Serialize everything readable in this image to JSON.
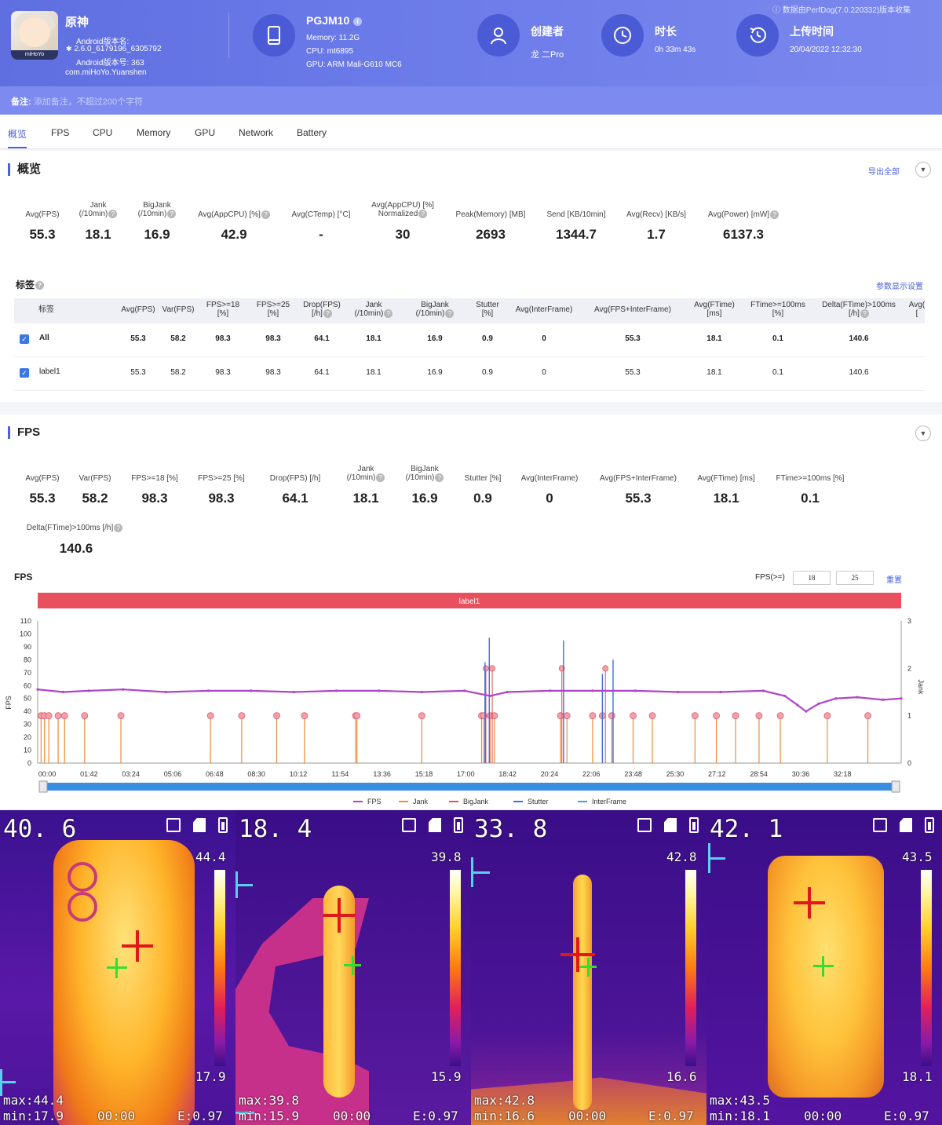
{
  "header": {
    "app_name": "原神",
    "app_icon_brand": "miHoYo",
    "version_name_label": "Android版本名:",
    "version_name": "2.6.0_6179196_6305792",
    "version_code": "Android版本号: 363",
    "package": "com.miHoYo.Yuanshen",
    "device_name": "PGJM10",
    "memory": "Memory: 11.2G",
    "cpu": "CPU: mt6895",
    "gpu": "GPU: ARM Mali-G610 MC6",
    "creator_label": "创建者",
    "creator": "龙 二Pro",
    "duration_label": "时长",
    "duration": "0h 33m 43s",
    "upload_label": "上传时间",
    "upload_time": "20/04/2022 12:32:30",
    "source_note": "数据由PerfDog(7.0.220332)版本收集"
  },
  "note": {
    "label": "备注:",
    "placeholder": "添加备注，不超过200个字符"
  },
  "tabs": [
    "概览",
    "FPS",
    "CPU",
    "Memory",
    "GPU",
    "Network",
    "Battery"
  ],
  "overview": {
    "title": "概览",
    "export_label": "导出全部",
    "metrics": [
      {
        "label": "Avg(FPS)",
        "value": "55.3"
      },
      {
        "label": "Jank\n(/10min)",
        "value": "18.1"
      },
      {
        "label": "BigJank\n(/10min)",
        "value": "16.9"
      },
      {
        "label": "Avg(AppCPU) [%]",
        "value": "42.9"
      },
      {
        "label": "Avg(CTemp) [°C]",
        "value": "-"
      },
      {
        "label": "Avg(AppCPU) [%]\nNormalized",
        "value": "30"
      },
      {
        "label": "Peak(Memory) [MB]",
        "value": "2693"
      },
      {
        "label": "Send [KB/10min]",
        "value": "1344.7"
      },
      {
        "label": "Avg(Recv) [KB/s]",
        "value": "1.7"
      },
      {
        "label": "Avg(Power) [mW]",
        "value": "6137.3"
      }
    ]
  },
  "labels_table": {
    "title": "标签",
    "settings_label": "参数显示设置",
    "headers": [
      "标签",
      "Avg(FPS)",
      "Var(FPS)",
      "FPS>=18\n[%]",
      "FPS>=25\n[%]",
      "Drop(FPS)\n[/h]",
      "Jank\n(/10min)",
      "BigJank\n(/10min)",
      "Stutter\n[%]",
      "Avg(InterFrame)",
      "Avg(FPS+InterFrame)",
      "Avg(FTime)\n[ms]",
      "FTime>=100ms\n[%]",
      "Delta(FTime)>100ms\n[/h]",
      "Avg(\n["
    ],
    "rows": [
      {
        "name": "All",
        "cells": [
          "55.3",
          "58.2",
          "98.3",
          "98.3",
          "64.1",
          "18.1",
          "16.9",
          "0.9",
          "0",
          "55.3",
          "18.1",
          "0.1",
          "140.6"
        ]
      },
      {
        "name": "label1",
        "cells": [
          "55.3",
          "58.2",
          "98.3",
          "98.3",
          "64.1",
          "18.1",
          "16.9",
          "0.9",
          "0",
          "55.3",
          "18.1",
          "0.1",
          "140.6"
        ]
      }
    ]
  },
  "fps_section": {
    "title": "FPS",
    "metrics": [
      {
        "label": "Avg(FPS)",
        "value": "55.3"
      },
      {
        "label": "Var(FPS)",
        "value": "58.2"
      },
      {
        "label": "FPS>=18 [%]",
        "value": "98.3"
      },
      {
        "label": "FPS>=25 [%]",
        "value": "98.3"
      },
      {
        "label": "Drop(FPS) [/h]",
        "value": "64.1"
      },
      {
        "label": "Jank\n(/10min)",
        "value": "18.1"
      },
      {
        "label": "BigJank\n(/10min)",
        "value": "16.9"
      },
      {
        "label": "Stutter [%]",
        "value": "0.9"
      },
      {
        "label": "Avg(InterFrame)",
        "value": "0"
      },
      {
        "label": "Avg(FPS+InterFrame)",
        "value": "55.3"
      },
      {
        "label": "Avg(FTime) [ms]",
        "value": "18.1"
      },
      {
        "label": "FTime>=100ms [%]",
        "value": "0.1"
      }
    ],
    "extra_metric": {
      "label": "Delta(FTime)>100ms [/h]",
      "value": "140.6"
    },
    "chart_title": "FPS",
    "threshold_label": "FPS(>=)",
    "threshold_1": "18",
    "threshold_2": "25",
    "reset_label": "重置"
  },
  "chart_data": {
    "type": "line",
    "band_label": "label1",
    "ylabel": "FPS",
    "y2label": "Jank",
    "ylim": [
      0,
      110
    ],
    "yticks": [
      0,
      10,
      20,
      30,
      40,
      50,
      60,
      70,
      80,
      90,
      100,
      110
    ],
    "y2lim": [
      0,
      3
    ],
    "y2ticks": [
      0,
      1,
      2,
      3
    ],
    "xticks": [
      "00:00",
      "01:42",
      "03:24",
      "05:06",
      "06:48",
      "08:30",
      "10:12",
      "11:54",
      "13:36",
      "15:18",
      "17:00",
      "18:42",
      "20:24",
      "22:06",
      "23:48",
      "25:30",
      "27:12",
      "28:54",
      "30:36",
      "32:18"
    ],
    "duration_s": 2023,
    "legend": [
      "FPS",
      "Jank",
      "BigJank",
      "Stutter",
      "InterFrame"
    ],
    "legend_position": "bottom",
    "colors": {
      "FPS": "#b044c8",
      "Jank": "#f08a3c",
      "BigJank": "#e05050",
      "Stutter": "#3c6fd8",
      "InterFrame": "#3aa0e8"
    },
    "fps_series": [
      [
        0,
        57
      ],
      [
        60,
        55
      ],
      [
        120,
        56
      ],
      [
        200,
        57
      ],
      [
        300,
        55
      ],
      [
        400,
        56
      ],
      [
        500,
        56
      ],
      [
        600,
        55
      ],
      [
        700,
        56
      ],
      [
        800,
        56
      ],
      [
        900,
        55
      ],
      [
        1000,
        56
      ],
      [
        1060,
        52
      ],
      [
        1100,
        55
      ],
      [
        1200,
        56
      ],
      [
        1300,
        56
      ],
      [
        1400,
        56
      ],
      [
        1500,
        55
      ],
      [
        1600,
        55
      ],
      [
        1700,
        56
      ],
      [
        1750,
        52
      ],
      [
        1780,
        45
      ],
      [
        1800,
        40
      ],
      [
        1830,
        46
      ],
      [
        1870,
        50
      ],
      [
        1920,
        51
      ],
      [
        1980,
        49
      ],
      [
        2023,
        50
      ]
    ],
    "jank_events_s": [
      8,
      16,
      26,
      48,
      63,
      110,
      195,
      405,
      478,
      560,
      625,
      745,
      748,
      900,
      1040,
      1045,
      1060,
      1070,
      1225,
      1240,
      1300,
      1323,
      1345,
      1395,
      1440,
      1540,
      1590,
      1635,
      1690,
      1740,
      1850,
      1945
    ],
    "bigjank_events_s": [
      1050,
      1065,
      1228,
      1330
    ],
    "stutter_spikes": [
      [
        1048,
        78
      ],
      [
        1058,
        97
      ],
      [
        1232,
        95
      ],
      [
        1323,
        69
      ],
      [
        1348,
        80
      ]
    ]
  },
  "thermal": {
    "panels": [
      {
        "temp": "40. 6",
        "max_scale": "44.4",
        "min_scale": "17.9",
        "max": "max:44.4",
        "min": "min:17.9",
        "time": "00:00",
        "emissivity": "E:0.97"
      },
      {
        "temp": "18. 4",
        "max_scale": "39.8",
        "min_scale": "15.9",
        "max": "max:39.8",
        "min": "min:15.9",
        "time": "00:00",
        "emissivity": "E:0.97"
      },
      {
        "temp": "33. 8",
        "max_scale": "42.8",
        "min_scale": "16.6",
        "max": "max:42.8",
        "min": "min:16.6",
        "time": "00:00",
        "emissivity": "E:0.97"
      },
      {
        "temp": "42. 1",
        "max_scale": "43.5",
        "min_scale": "18.1",
        "max": "max:43.5",
        "min": "min:18.1",
        "time": "00:00",
        "emissivity": "E:0.97"
      }
    ]
  }
}
